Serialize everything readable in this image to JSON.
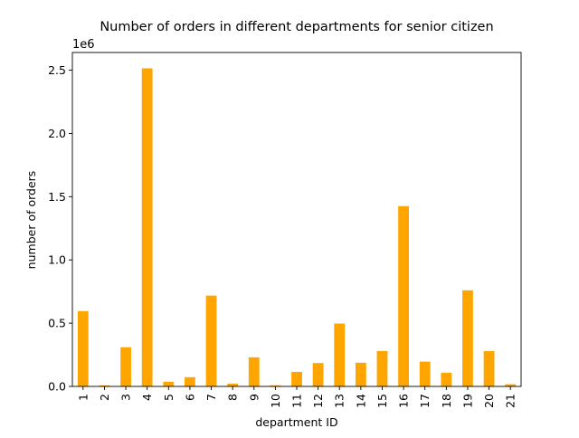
{
  "chart_data": {
    "type": "bar",
    "title": "Number of orders in different departments for senior citizen",
    "xlabel": "department ID",
    "ylabel": "number of orders",
    "y_offset_label": "1e6",
    "categories": [
      "1",
      "2",
      "3",
      "4",
      "5",
      "6",
      "7",
      "8",
      "9",
      "10",
      "11",
      "12",
      "13",
      "14",
      "15",
      "16",
      "17",
      "18",
      "19",
      "20",
      "21"
    ],
    "values": [
      595000,
      8000,
      310000,
      2515000,
      37000,
      73000,
      718000,
      22000,
      230000,
      8000,
      115000,
      185000,
      497000,
      187000,
      280000,
      1425000,
      196000,
      108000,
      760000,
      279000,
      17000
    ],
    "ylim": [
      0,
      2640000
    ],
    "yticks": [
      0,
      500000,
      1000000,
      1500000,
      2000000,
      2500000
    ],
    "ytick_labels": [
      "0.0",
      "0.5",
      "1.0",
      "1.5",
      "2.0",
      "2.5"
    ],
    "bar_color": "#ffa500",
    "grid": false,
    "legend": false
  }
}
